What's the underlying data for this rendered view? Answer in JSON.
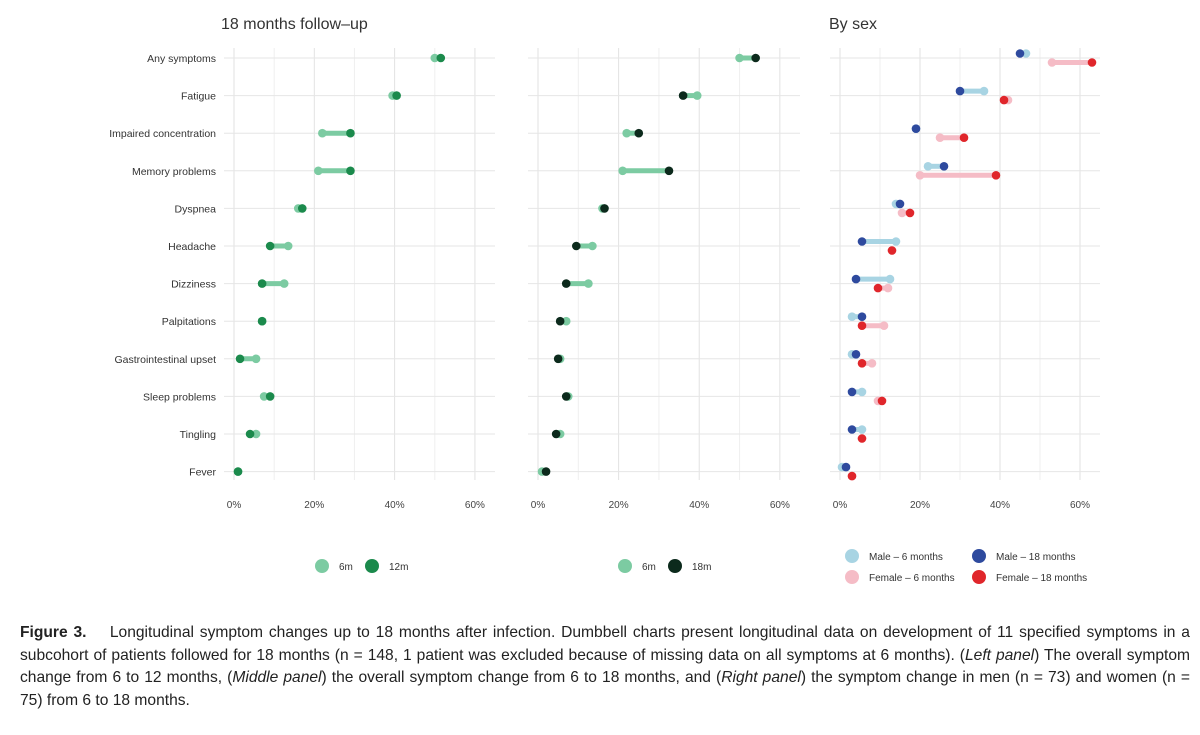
{
  "caption": {
    "label": "Figure 3.",
    "text_1": "Longitudinal symptom changes up to 18 months after infection. Dumbbell charts present longitudinal data on development of 11 specified symptoms in a subcohort of patients followed for 18 months (n = 148, 1 patient was excluded because of missing data on all symptoms at 6 months). (",
    "left_panel": "Left panel",
    "text_2": ") The overall symptom change from 6 to 12 months, (",
    "middle_panel": "Middle panel",
    "text_3": ") the overall symptom change from 6 to 18 months, and (",
    "right_panel": "Right panel",
    "text_4": ") the symptom change in men (n = 73) and women (n = 75) from 6 to 18 months."
  },
  "colors": {
    "m6": "#7ccba2",
    "m12": "#1b8a4c",
    "m18": "#0c2a1c",
    "male6": "#a8d4e3",
    "male18": "#2e4a9e",
    "female6": "#f5bcc6",
    "female18": "#e0262b"
  },
  "chart_data": [
    {
      "type": "dumbbell",
      "title": "18 months follow–up",
      "categories": [
        "Any symptoms",
        "Fatigue",
        "Impaired concentration",
        "Memory problems",
        "Dyspnea",
        "Headache",
        "Dizziness",
        "Palpitations",
        "Gastrointestinal upset",
        "Sleep problems",
        "Tingling",
        "Fever"
      ],
      "x_ticks": [
        "0%",
        "20%",
        "40%",
        "60%"
      ],
      "xlim": [
        0,
        65
      ],
      "series": [
        {
          "name": "6m",
          "color_key": "m6",
          "values": [
            50,
            39.5,
            22,
            21,
            16,
            13.5,
            12.5,
            7,
            5.5,
            7.5,
            5.5,
            1
          ]
        },
        {
          "name": "12m",
          "color_key": "m12",
          "values": [
            51.5,
            40.5,
            29,
            29,
            17,
            9,
            7,
            7,
            1.5,
            9,
            4,
            1
          ]
        }
      ],
      "legend": "bottom"
    },
    {
      "type": "dumbbell",
      "title": "",
      "categories": [
        "Any symptoms",
        "Fatigue",
        "Impaired concentration",
        "Memory problems",
        "Dyspnea",
        "Headache",
        "Dizziness",
        "Palpitations",
        "Gastrointestinal upset",
        "Sleep problems",
        "Tingling",
        "Fever"
      ],
      "x_ticks": [
        "0%",
        "20%",
        "40%",
        "60%"
      ],
      "xlim": [
        0,
        65
      ],
      "series": [
        {
          "name": "6m",
          "color_key": "m6",
          "values": [
            50,
            39.5,
            22,
            21,
            16,
            13.5,
            12.5,
            7,
            5.5,
            7.5,
            5.5,
            1
          ]
        },
        {
          "name": "18m",
          "color_key": "m18",
          "values": [
            54,
            36,
            25,
            32.5,
            16.5,
            9.5,
            7,
            5.5,
            5,
            7,
            4.5,
            2
          ]
        }
      ],
      "legend": "bottom"
    },
    {
      "type": "dumbbell",
      "title": "By sex",
      "categories": [
        "Any symptoms",
        "Fatigue",
        "Impaired concentration",
        "Memory problems",
        "Dyspnea",
        "Headache",
        "Dizziness",
        "Palpitations",
        "Gastrointestinal upset",
        "Sleep problems",
        "Tingling",
        "Fever"
      ],
      "x_ticks": [
        "0%",
        "20%",
        "40%",
        "60%"
      ],
      "xlim": [
        0,
        65
      ],
      "series": [
        {
          "name": "Male – 6 months",
          "color_key": "male6",
          "group": "male",
          "values": [
            46.5,
            36,
            19,
            22,
            14,
            14,
            12.5,
            3,
            3,
            5.5,
            5.5,
            0.5
          ]
        },
        {
          "name": "Male – 18 months",
          "color_key": "male18",
          "group": "male",
          "values": [
            45,
            30,
            19,
            26,
            15,
            5.5,
            4,
            5.5,
            4,
            3,
            3,
            1.5
          ]
        },
        {
          "name": "Female – 6 months",
          "color_key": "female6",
          "group": "female",
          "values": [
            53,
            42,
            25,
            20,
            15.5,
            13,
            12,
            11,
            8,
            9.5,
            5.5,
            3
          ]
        },
        {
          "name": "Female – 18 months",
          "color_key": "female18",
          "group": "female",
          "values": [
            63,
            41,
            31,
            39,
            17.5,
            13,
            9.5,
            5.5,
            5.5,
            10.5,
            5.5,
            3
          ]
        }
      ],
      "legend": "bottom"
    }
  ]
}
